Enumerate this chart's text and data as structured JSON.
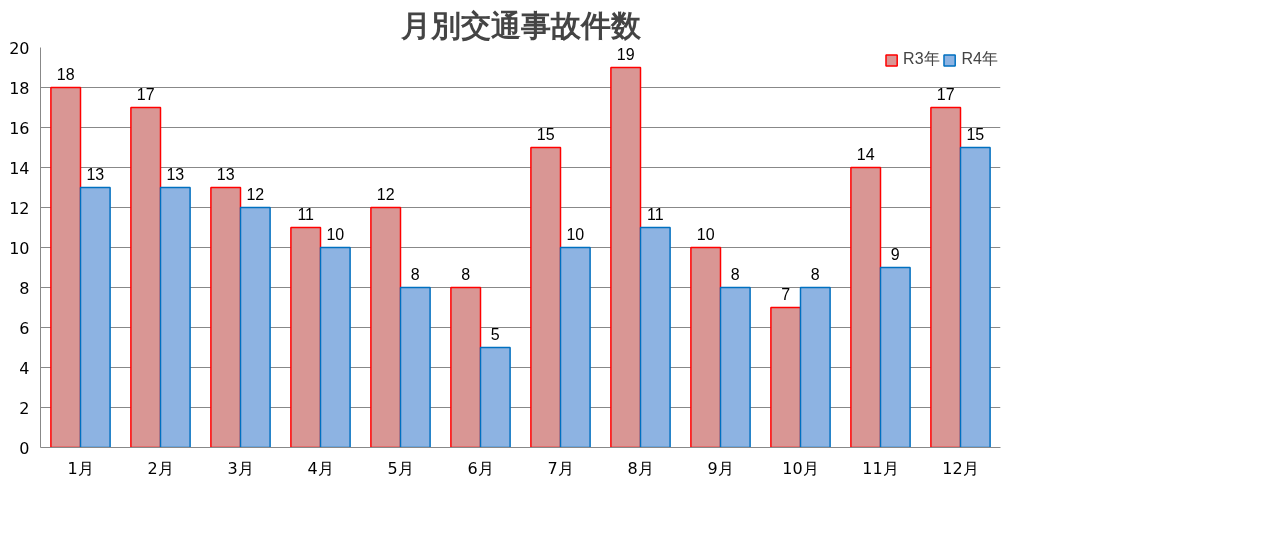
{
  "chart_data": {
    "type": "bar",
    "title": "月別交通事故件数",
    "categories": [
      "1月",
      "2月",
      "3月",
      "4月",
      "5月",
      "6月",
      "7月",
      "8月",
      "9月",
      "10月",
      "11月",
      "12月"
    ],
    "series": [
      {
        "name": "R3年",
        "color": "#d99694",
        "values": [
          18,
          17,
          13,
          11,
          12,
          8,
          15,
          19,
          10,
          7,
          14,
          17
        ]
      },
      {
        "name": "R4年",
        "color": "#8db3e2",
        "values": [
          13,
          13,
          12,
          10,
          8,
          5,
          10,
          11,
          8,
          8,
          9,
          15
        ]
      }
    ],
    "ylim": [
      0,
      20
    ],
    "yticks": [
      0,
      2,
      4,
      6,
      8,
      10,
      12,
      14,
      16,
      18,
      20
    ],
    "grid": "y",
    "legend": "top right",
    "data_labels": true
  }
}
